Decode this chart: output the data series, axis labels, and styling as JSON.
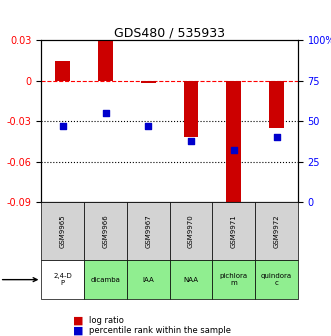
{
  "title": "GDS480 / 535933",
  "samples": [
    "GSM9965",
    "GSM9966",
    "GSM9967",
    "GSM9970",
    "GSM9971",
    "GSM9972"
  ],
  "agents": [
    "2,4-D\nP",
    "dicamba",
    "IAA",
    "NAA",
    "pichlora\nm",
    "quindora\nc"
  ],
  "agent_colors": [
    "#ffffff",
    "#90ee90",
    "#90ee90",
    "#90ee90",
    "#90ee90",
    "#90ee90"
  ],
  "log_ratio": [
    0.015,
    0.03,
    -0.002,
    -0.042,
    -0.09,
    -0.035
  ],
  "percentile_rank": [
    47,
    55,
    47,
    38,
    32,
    40
  ],
  "bar_color": "#cc0000",
  "dot_color": "#0000cc",
  "ylim_left": [
    -0.09,
    0.03
  ],
  "ylim_right": [
    0,
    100
  ],
  "yticks_left": [
    0.03,
    0.0,
    -0.03,
    -0.06,
    -0.09
  ],
  "ytick_left_labels": [
    "0.03",
    "0",
    "-0.03",
    "-0.06",
    "-0.09"
  ],
  "yticks_right": [
    100,
    75,
    50,
    25,
    0
  ],
  "ytick_right_labels": [
    "100%",
    "75",
    "50",
    "25",
    "0"
  ],
  "dotted_lines": [
    -0.03,
    -0.06
  ],
  "dashed_line": 0.0,
  "legend_items": [
    "log ratio",
    "percentile rank within the sample"
  ]
}
